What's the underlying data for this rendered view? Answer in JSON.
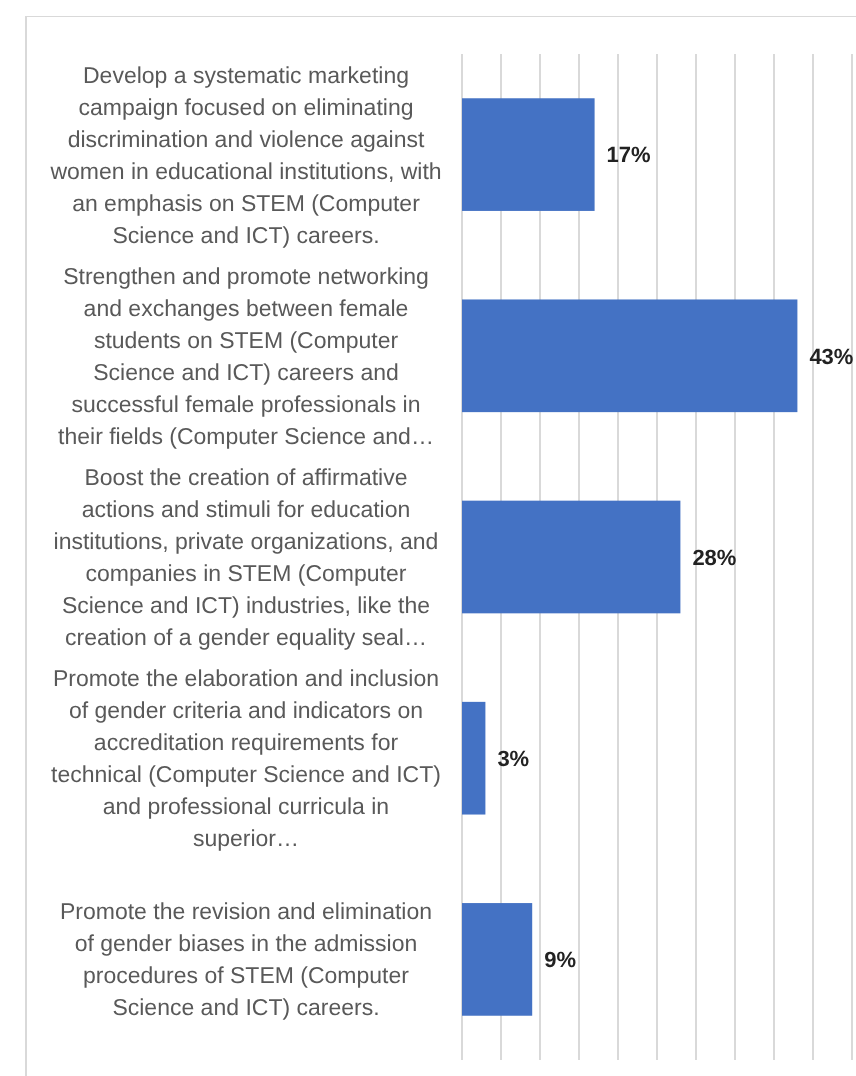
{
  "chart_data": {
    "type": "bar",
    "orientation": "horizontal",
    "categories": [
      "Develop a systematic marketing campaign focused on eliminating discrimination and violence against women in educational institutions, with an emphasis on STEM (Computer Science and ICT) careers.",
      "Strengthen and promote networking and exchanges between female students on STEM (Computer Science and ICT) careers and successful female professionals in their fields (Computer Science and…",
      "Boost the creation of affirmative actions and stimuli for education institutions, private organizations, and companies in STEM (Computer Science and ICT) industries, like the creation of a gender equality seal…",
      "Promote the elaboration and inclusion of gender criteria and indicators on accreditation requirements for technical (Computer Science and ICT) and professional curricula in superior…",
      "Promote the revision and elimination of gender biases in the admission procedures of STEM (Computer Science and ICT) careers."
    ],
    "values": [
      17,
      43,
      28,
      3,
      9
    ],
    "value_labels": [
      "17%",
      "43%",
      "28%",
      "3%",
      "9%"
    ],
    "color": "#4472c4",
    "xlim": [
      0,
      50
    ],
    "xticks": [
      {
        "value": 0,
        "label": null
      },
      {
        "value": 5,
        "label": null
      },
      {
        "value": 10,
        "label": null
      },
      {
        "value": 15,
        "label": null
      },
      {
        "value": 20,
        "label": null
      },
      {
        "value": 25,
        "label": null
      },
      {
        "value": 30,
        "label": null
      },
      {
        "value": 35,
        "label": null
      },
      {
        "value": 40,
        "label": null
      },
      {
        "value": 45,
        "label": null
      },
      {
        "value": 50,
        "label": null
      }
    ],
    "grid": "x",
    "tick_labels": "y"
  }
}
